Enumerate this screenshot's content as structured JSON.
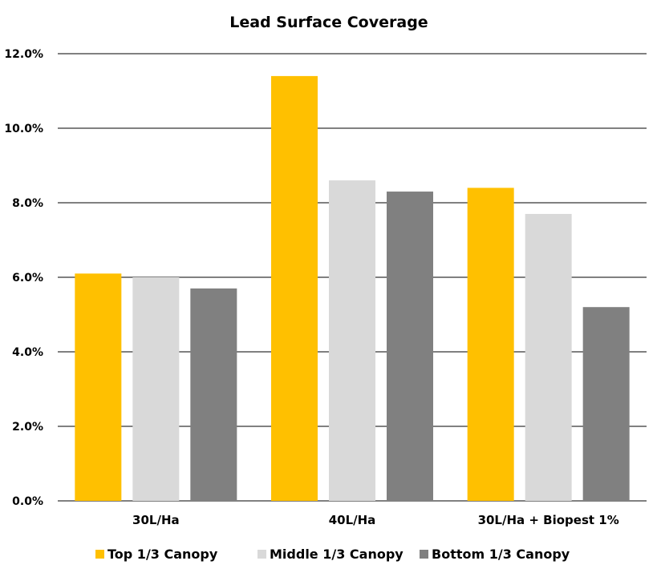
{
  "chart_data": {
    "type": "bar",
    "title": "Lead Surface Coverage",
    "xlabel": "",
    "ylabel": "",
    "categories": [
      "30L/Ha",
      "40L/Ha",
      "30L/Ha + Biopest 1%"
    ],
    "series": [
      {
        "name": "Top 1/3 Canopy",
        "values": [
          6.1,
          11.4,
          8.4
        ],
        "color": "#FFC000"
      },
      {
        "name": "Middle 1/3 Canopy",
        "values": [
          6.0,
          8.6,
          7.7
        ],
        "color": "#D9D9D9"
      },
      {
        "name": "Bottom 1/3 Canopy",
        "values": [
          5.7,
          8.3,
          5.2
        ],
        "color": "#808080"
      }
    ],
    "ylim": [
      0,
      12
    ],
    "yticks": [
      0,
      2,
      4,
      6,
      8,
      10,
      12
    ],
    "ytick_labels": [
      "0.0%",
      "2.0%",
      "4.0%",
      "6.0%",
      "8.0%",
      "10.0%",
      "12.0%"
    ],
    "grid": true,
    "legend_position": "bottom"
  }
}
